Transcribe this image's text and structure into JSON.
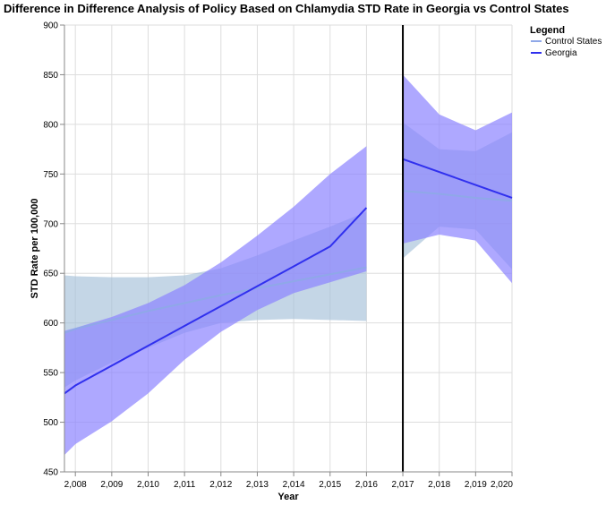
{
  "title": "Difference in Difference Analysis of Policy Based on Chlamydia STD Rate in Georgia vs Control States",
  "colors": {
    "control_band": "#a4c0d8",
    "control_line": "#8fa8e8",
    "georgia_band": "#8c83ff",
    "georgia_line": "#3030ee",
    "policy_line": "#000000",
    "grid": "#dddddd"
  },
  "chart_data": {
    "type": "line",
    "title": "Difference in Difference Analysis of Policy Based on Chlamydia STD Rate in Georgia vs Control States",
    "xlabel": "Year",
    "ylabel": "STD Rate per 100,000",
    "xlim": [
      2007.7,
      2020.0
    ],
    "ylim": [
      450,
      900
    ],
    "x_ticks": [
      2008,
      2009,
      2010,
      2011,
      2012,
      2013,
      2014,
      2015,
      2016,
      2017,
      2018,
      2019,
      2020
    ],
    "x_tick_labels": [
      "2,008",
      "2,009",
      "2,010",
      "2,011",
      "2,012",
      "2,013",
      "2,014",
      "2,015",
      "2,016",
      "2,017",
      "2,018",
      "2,019",
      "2,020"
    ],
    "y_ticks": [
      450,
      500,
      550,
      600,
      650,
      700,
      750,
      800,
      850,
      900
    ],
    "y_tick_labels": [
      "450",
      "500",
      "550",
      "600",
      "650",
      "700",
      "750",
      "800",
      "850",
      "900"
    ],
    "policy_year": 2017,
    "grid": true,
    "legend_position": "top-right",
    "legend_title": "Legend",
    "series": [
      {
        "name": "Control States",
        "pre": {
          "x": [
            2007.7,
            2008,
            2009,
            2010,
            2011,
            2012,
            2013,
            2014,
            2015,
            2016
          ],
          "y": [
            590,
            594,
            603,
            612,
            620,
            628,
            635,
            642,
            649,
            656
          ],
          "lower": [
            535,
            542,
            560,
            575,
            590,
            600,
            603,
            604,
            603,
            602
          ],
          "upper": [
            648,
            647,
            646,
            646,
            648,
            655,
            668,
            683,
            697,
            712
          ]
        },
        "post": {
          "x": [
            2017,
            2018,
            2019,
            2020
          ],
          "y": [
            733,
            730,
            726,
            723
          ],
          "lower": [
            665,
            697,
            694,
            654
          ],
          "upper": [
            802,
            775,
            773,
            792
          ]
        }
      },
      {
        "name": "Georgia",
        "pre": {
          "x": [
            2007.7,
            2008,
            2009,
            2010,
            2011,
            2012,
            2013,
            2014,
            2015,
            2016
          ],
          "y": [
            529,
            537,
            557,
            577,
            597,
            617,
            637,
            657,
            677,
            716
          ],
          "lower": [
            467,
            478,
            501,
            529,
            563,
            591,
            613,
            630,
            641,
            652
          ],
          "upper": [
            592,
            595,
            606,
            620,
            638,
            661,
            688,
            717,
            750,
            778
          ]
        },
        "post": {
          "x": [
            2017,
            2018,
            2019,
            2020
          ],
          "y": [
            765,
            752,
            739,
            726
          ],
          "lower": [
            680,
            689,
            683,
            640
          ],
          "upper": [
            850,
            810,
            794,
            812
          ]
        }
      }
    ]
  }
}
